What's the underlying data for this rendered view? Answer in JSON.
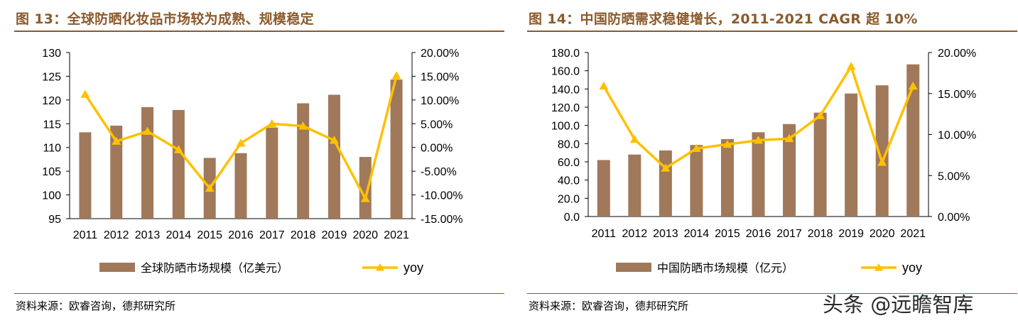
{
  "watermark": "头条 @远瞻智库",
  "chart_data": [
    {
      "type": "bar",
      "title": "图 13：全球防晒化妆品市场较为成熟、规模稳定",
      "source": "资料来源：欧睿咨询，德邦研究所",
      "categories": [
        "2011",
        "2012",
        "2013",
        "2014",
        "2015",
        "2016",
        "2017",
        "2018",
        "2019",
        "2020",
        "2021"
      ],
      "ylim": [
        95,
        130
      ],
      "y_ticks": [
        "130",
        "125",
        "120",
        "115",
        "110",
        "105",
        "100",
        "95"
      ],
      "y2lim": [
        -15,
        20
      ],
      "y2_ticks": [
        "20.00%",
        "15.00%",
        "10.00%",
        "5.00%",
        "0.00%",
        "-5.00%",
        "-10.00%",
        "-15.00%"
      ],
      "series": [
        {
          "name": "全球防晒市场规模（亿美元）",
          "type": "bar",
          "axis": "left",
          "color": "#a0785a",
          "values": [
            113.2,
            114.6,
            118.5,
            117.9,
            107.8,
            108.8,
            114.2,
            119.3,
            121.1,
            108.0,
            124.3
          ]
        },
        {
          "name": "yoy",
          "type": "line",
          "axis": "right",
          "color": "#ffc000",
          "values": [
            11.2,
            1.3,
            3.4,
            -0.5,
            -8.6,
            0.9,
            5.0,
            4.5,
            1.5,
            -10.8,
            15.1
          ]
        }
      ],
      "legend": "bottom"
    },
    {
      "type": "bar",
      "title": "图 14：中国防晒需求稳健增长，2011-2021 CAGR 超 10%",
      "source": "资料来源：欧睿咨询，德邦研究所",
      "categories": [
        "2011",
        "2012",
        "2013",
        "2014",
        "2015",
        "2016",
        "2017",
        "2018",
        "2019",
        "2020",
        "2021"
      ],
      "ylim": [
        0,
        180
      ],
      "y_ticks": [
        "180.0",
        "160.0",
        "140.0",
        "120.0",
        "100.0",
        "80.0",
        "60.0",
        "40.0",
        "20.0",
        "0.0"
      ],
      "y2lim": [
        0,
        20
      ],
      "y2_ticks": [
        "20.00%",
        "15.00%",
        "10.00%",
        "5.00%",
        "0.00%"
      ],
      "series": [
        {
          "name": "中国防晒市场规模（亿元）",
          "type": "bar",
          "axis": "left",
          "color": "#a0785a",
          "values": [
            62.0,
            68.0,
            72.5,
            78.5,
            85.0,
            92.5,
            101.5,
            114.0,
            135.0,
            144.0,
            167.0
          ]
        },
        {
          "name": "yoy",
          "type": "line",
          "axis": "right",
          "color": "#ffc000",
          "values": [
            15.9,
            9.4,
            5.9,
            8.3,
            8.8,
            9.3,
            9.5,
            12.3,
            18.3,
            6.6,
            15.9
          ]
        }
      ],
      "legend": "bottom"
    }
  ]
}
